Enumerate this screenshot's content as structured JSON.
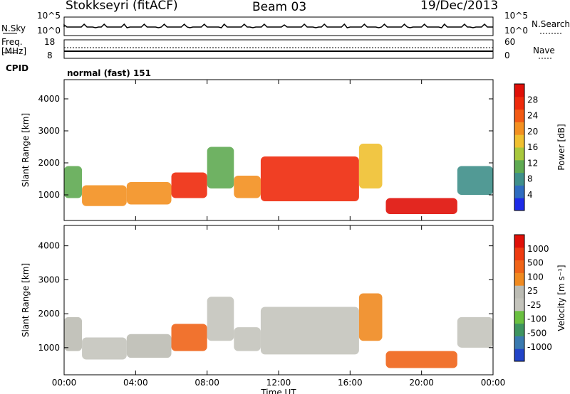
{
  "header": {
    "station": "Stokkseyri (fitACF)",
    "beam": "Beam 03",
    "date": "19/Dec/2013"
  },
  "panels": {
    "nsky": {
      "label": "N.Sky",
      "right_label": "N.Search",
      "left_ticks": [
        "10^5",
        "10^0"
      ],
      "right_ticks": [
        "10^5",
        "10^0"
      ]
    },
    "freq": {
      "label_line1": "Freq.",
      "label_line2": "[MHz]",
      "right_label": "Nave",
      "left_ticks": [
        "18",
        "8"
      ],
      "right_ticks": [
        "60",
        "0"
      ]
    },
    "cpid": {
      "label": "CPID",
      "text": "normal (fast) 151"
    }
  },
  "colors": {
    "power": [
      "#1d2be8",
      "#2f6cc0",
      "#3f8f8a",
      "#5faa52",
      "#a8c83c",
      "#f0c030",
      "#f39020",
      "#f25a14",
      "#ee2a0c",
      "#e01008"
    ],
    "velocity": [
      "#2244c8",
      "#3a7ab0",
      "#3e9460",
      "#6ac040",
      "#c4c4bc",
      "#bcbcb4",
      "#f08a20",
      "#f06418",
      "#ee3a10",
      "#e01008"
    ]
  },
  "chart_data": [
    {
      "type": "heatmap",
      "name": "power",
      "ylabel": "Slant Range [km]",
      "ylim": [
        200,
        4600
      ],
      "yticks": [
        1000,
        2000,
        3000,
        4000
      ],
      "xlim": [
        0,
        24
      ],
      "colorbar": {
        "label": "Power [dB]",
        "ticks": [
          "4",
          "8",
          "12",
          "16",
          "20",
          "24",
          "28"
        ]
      },
      "regions": [
        {
          "t": [
            0.0,
            1.0
          ],
          "r": [
            900,
            1900
          ],
          "v": 3
        },
        {
          "t": [
            1.0,
            3.5
          ],
          "r": [
            650,
            1300
          ],
          "v": 6
        },
        {
          "t": [
            3.5,
            6.0
          ],
          "r": [
            700,
            1400
          ],
          "v": 6
        },
        {
          "t": [
            6.0,
            8.0
          ],
          "r": [
            900,
            1700
          ],
          "v": 8
        },
        {
          "t": [
            8.0,
            9.5
          ],
          "r": [
            1200,
            2500
          ],
          "v": 3
        },
        {
          "t": [
            9.5,
            11.0
          ],
          "r": [
            900,
            1600
          ],
          "v": 6
        },
        {
          "t": [
            11.0,
            16.5
          ],
          "r": [
            800,
            2200
          ],
          "v": 8
        },
        {
          "t": [
            16.5,
            17.8
          ],
          "r": [
            1200,
            2600
          ],
          "v": 5
        },
        {
          "t": [
            18.0,
            22.0
          ],
          "r": [
            400,
            900
          ],
          "v": 9
        },
        {
          "t": [
            22.0,
            24.0
          ],
          "r": [
            1000,
            1900
          ],
          "v": 2
        }
      ]
    },
    {
      "type": "heatmap",
      "name": "velocity",
      "ylabel": "Slant Range [km]",
      "xlabel": "Time UT",
      "ylim": [
        200,
        4600
      ],
      "yticks": [
        1000,
        2000,
        3000,
        4000
      ],
      "xlim": [
        0,
        24
      ],
      "xticks": [
        "00:00",
        "04:00",
        "08:00",
        "12:00",
        "16:00",
        "20:00",
        "00:00"
      ],
      "colorbar": {
        "label": "Velocity [m s⁻¹]",
        "ticks": [
          "1000",
          "500",
          "100",
          "25",
          "-25",
          "-100",
          "-500",
          "-1000"
        ]
      },
      "regions": [
        {
          "t": [
            0.0,
            1.0
          ],
          "r": [
            900,
            1900
          ],
          "v": 5
        },
        {
          "t": [
            1.0,
            3.5
          ],
          "r": [
            650,
            1300
          ],
          "v": 4
        },
        {
          "t": [
            3.5,
            6.0
          ],
          "r": [
            700,
            1400
          ],
          "v": 5
        },
        {
          "t": [
            6.0,
            8.0
          ],
          "r": [
            900,
            1700
          ],
          "v": 7
        },
        {
          "t": [
            8.0,
            9.5
          ],
          "r": [
            1200,
            2500
          ],
          "v": 4
        },
        {
          "t": [
            9.5,
            11.0
          ],
          "r": [
            900,
            1600
          ],
          "v": 4
        },
        {
          "t": [
            11.0,
            16.5
          ],
          "r": [
            800,
            2200
          ],
          "v": 4
        },
        {
          "t": [
            16.5,
            17.8
          ],
          "r": [
            1200,
            2600
          ],
          "v": 6
        },
        {
          "t": [
            18.0,
            22.0
          ],
          "r": [
            400,
            900
          ],
          "v": 7
        },
        {
          "t": [
            22.0,
            24.0
          ],
          "r": [
            1000,
            1900
          ],
          "v": 4
        }
      ]
    }
  ]
}
